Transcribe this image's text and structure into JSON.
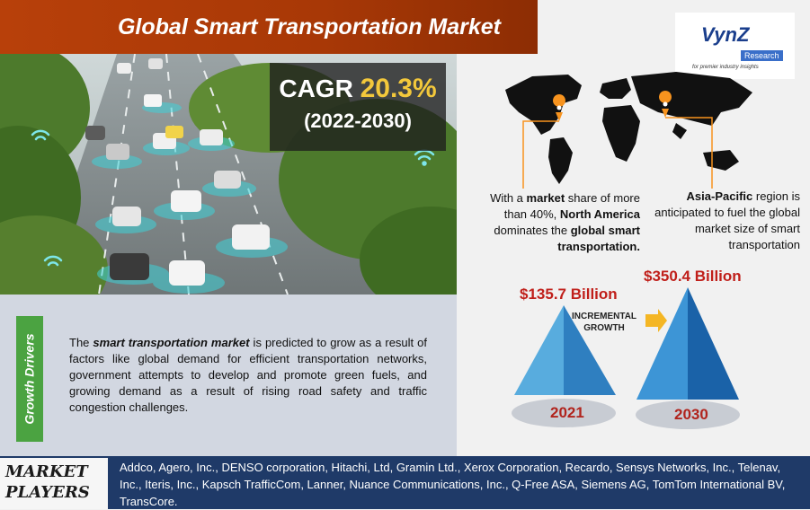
{
  "header": {
    "title": "Global Smart Transportation Market"
  },
  "cagr": {
    "label": "CAGR",
    "value": "20.3%",
    "period": "(2022-2030)"
  },
  "logo": {
    "name": "VynZ",
    "sub": "Research",
    "tagline": "for premier industry insights"
  },
  "regions": {
    "north_america": {
      "pre": "With a ",
      "b1": "market",
      "mid1": " share of more than 40%, ",
      "b2": "North America",
      "mid2": " dominates the ",
      "b3": "global smart transportation."
    },
    "asia_pacific": {
      "b1": "Asia-Pacific",
      "rest": " region is anticipated to fuel the global market size of smart transportation"
    }
  },
  "market_values": {
    "v2021": "$135.7 Billion",
    "v2030": "$350.4 Billion",
    "year_2021": "2021",
    "year_2030": "2030",
    "incremental_line1": "INCREMENTAL",
    "incremental_line2": "GROWTH"
  },
  "growth_drivers": {
    "tab_label": "Growth Drivers",
    "lead": "The ",
    "emph": "smart transportation market",
    "text": " is predicted to grow as a result of factors like global demand for efficient transportation networks, government attempts to develop and promote green fuels, and growing demand as a result of rising road safety and traffic congestion challenges."
  },
  "market_players": {
    "label_line1": "MARKET",
    "label_line2": "PLAYERS",
    "list": "Addco, Agero, Inc., DENSO corporation, Hitachi, Ltd, Gramin Ltd., Xerox Corporation, Recardo, Sensys Networks, Inc., Telenav, Inc., Iteris, Inc., Kapsch TrafficCom, Lanner, Nuance Communications, Inc., Q-Free ASA, Siemens AG, TomTom International BV, TransCore."
  },
  "colors": {
    "banner": "#b8400a",
    "cagr_value": "#f3c83b",
    "growth_tab": "#4ba341",
    "money_red": "#c01f1a",
    "players_bar": "#1f3a68",
    "pyramid_blue": "#2f83c8"
  }
}
